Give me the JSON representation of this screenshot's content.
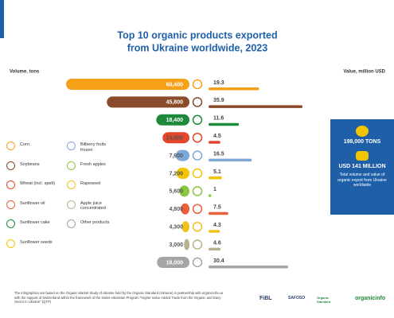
{
  "chart_data": {
    "type": "bar",
    "title": "Top 10 organic products exported",
    "subtitle": "from Ukraine worldwide, 2023",
    "x_label_left": "Volume, tons",
    "x_label_right": "Value, million USD",
    "categories": [
      "Corn",
      "Soybeans",
      "Sunflower cake",
      "Wheat (incl. spelt)",
      "Bilberry fruits frozen",
      "Sunflower seeds",
      "Fresh apples",
      "Sunflower oil",
      "Rapeseed",
      "Apple juice concentrated",
      "Other products"
    ],
    "colors": [
      "#f6a01a",
      "#8a4b2b",
      "#1d8a3b",
      "#e4462b",
      "#7ea8d8",
      "#f3c400",
      "#8cc63f",
      "#e9603b",
      "#f1c21b",
      "#b7b28a",
      "#a5a5a5"
    ],
    "series": [
      {
        "name": "Volume, tons",
        "values": [
          68400,
          45800,
          18400,
          14900,
          7600,
          7200,
          5600,
          4800,
          4300,
          3000,
          18000
        ],
        "value_labels": [
          "68,400",
          "45,800",
          "18,400",
          "14,900",
          "7,600",
          "7,200",
          "5,600",
          "4,800",
          "4,300",
          "3,000",
          "18,000"
        ]
      },
      {
        "name": "Value, million USD",
        "values": [
          19.3,
          35.9,
          11.6,
          4.5,
          16.5,
          5.1,
          1,
          7.5,
          4.3,
          4.6,
          30.4
        ]
      }
    ]
  },
  "summary": {
    "volume": "198,000 TONS",
    "value": "USD 141 MILLION",
    "note": "Total volume and value of organic export from Ukraine worldwide"
  },
  "footer": "The infographics are based on the Organic Market Study of Ukraine held by the Organic Standard (Ukraine) in partnership with organicinfo.ua with the support of Switzerland within the framework of the Swiss-Ukrainian Program \"Higher Value Added Trade from the Organic and Dairy Sector in Ukraine\" (QTP)",
  "logos": [
    "FiBL",
    "SAFOSO",
    "Organic Standard",
    "organicinfo"
  ]
}
